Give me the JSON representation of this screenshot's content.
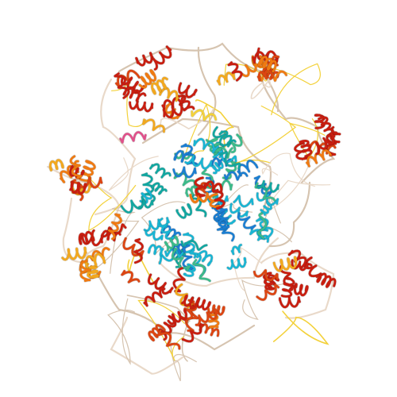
{
  "image": {
    "subject": "protein-ribbon-cartoon",
    "background_color": "#ffffff"
  },
  "palette": {
    "loop": "#e9d9c9",
    "loop_dark": "#d6c4b0",
    "red": "#c81e10",
    "red_orange": "#dc4512",
    "orange": "#ef7a12",
    "yellow_orange": "#f2a81f",
    "yellow": "#f3d13a",
    "green": "#3cba8a",
    "cyan": "#19b4d2",
    "blue": "#1b7ed1",
    "teal": "#12a6a0",
    "pink": "#e0508a"
  },
  "domains": [
    {
      "name": "top-left-domain",
      "tone": "warm"
    },
    {
      "name": "top-right-domain",
      "tone": "warm"
    },
    {
      "name": "right-domain",
      "tone": "warm"
    },
    {
      "name": "left-domain",
      "tone": "warm"
    },
    {
      "name": "lower-left-domain",
      "tone": "warm"
    },
    {
      "name": "bottom-domain",
      "tone": "warm"
    },
    {
      "name": "lower-right-domain",
      "tone": "warm"
    },
    {
      "name": "central-core",
      "tone": "cool"
    }
  ]
}
